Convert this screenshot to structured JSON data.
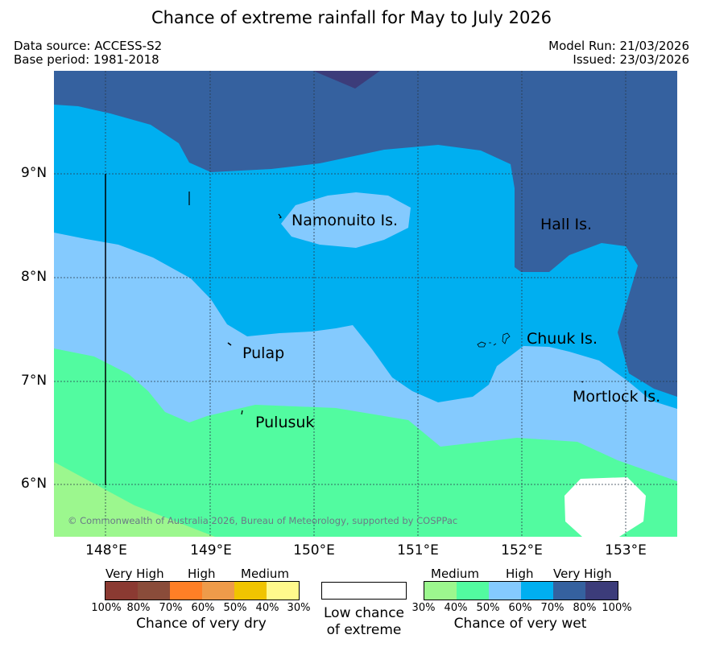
{
  "title": "Chance of extreme rainfall for May to July 2026",
  "meta": {
    "data_source": "Data source: ACCESS-S2",
    "base_period": "Base period: 1981-2018",
    "model_run": "Model Run: 21/03/2026",
    "issued": "Issued: 23/03/2026"
  },
  "map": {
    "lat_labels": [
      "9°N",
      "8°N",
      "7°N",
      "6°N"
    ],
    "lon_labels": [
      "148°E",
      "149°E",
      "150°E",
      "151°E",
      "152°E",
      "153°E"
    ],
    "places": {
      "namonuito": "Namonuito Is.",
      "hall": "Hall Is.",
      "pulap": "Pulap",
      "chuuk": "Chuuk Is.",
      "mortlock": "Mortlock Is.",
      "pulusuk": "Pulusuk"
    },
    "copyright": "© Commonwealth of Australia 2026, Bureau of Meteorology, supported by COSPPac"
  },
  "legend": {
    "dry": {
      "categories": [
        "Very High",
        "High",
        "Medium"
      ],
      "ticks": [
        "100%",
        "80%",
        "70%",
        "60%",
        "50%",
        "40%",
        "30%"
      ],
      "colors": [
        "#8b3a32",
        "#8a4c3a",
        "#ff7f26",
        "#ee9b4a",
        "#f0c400",
        "#fff98c"
      ],
      "title": "Chance of very dry"
    },
    "neutral": {
      "title_line1": "Low chance",
      "title_line2": "of extreme",
      "color": "#ffffff"
    },
    "wet": {
      "categories": [
        "Medium",
        "High",
        "Very High"
      ],
      "ticks": [
        "30%",
        "40%",
        "50%",
        "60%",
        "70%",
        "80%",
        "100%"
      ],
      "colors": [
        "#9cf78e",
        "#52fba0",
        "#84cafe",
        "#00aff0",
        "#35619f",
        "#3c3c7a"
      ],
      "title": "Chance of very wet"
    }
  }
}
